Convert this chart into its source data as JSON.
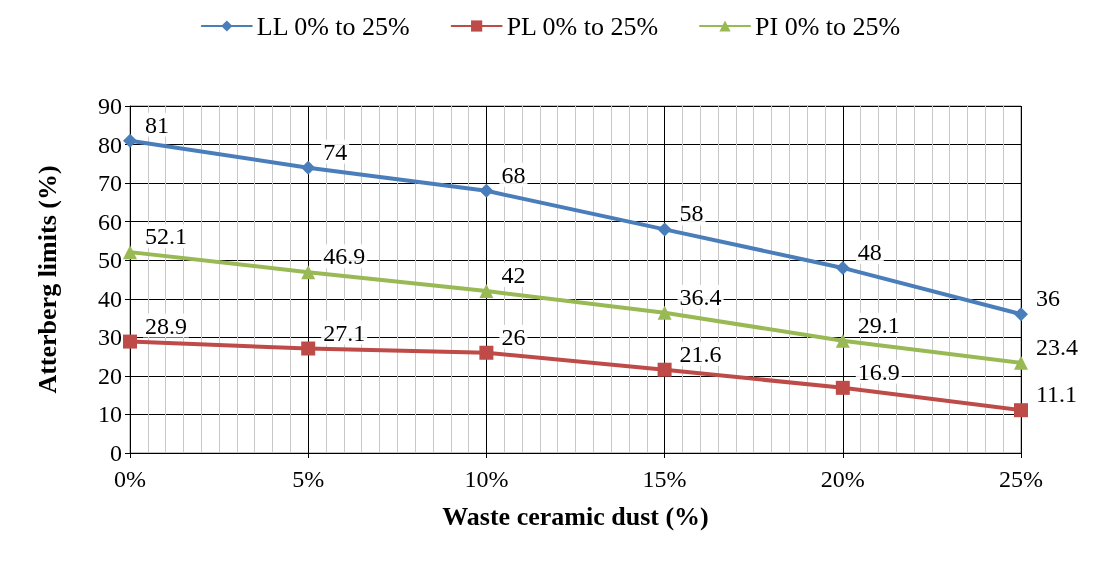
{
  "chart_data": {
    "type": "line",
    "xlabel": "Waste ceramic dust (%)",
    "ylabel": "Atterberg limits (%)",
    "x": [
      0,
      5,
      10,
      15,
      20,
      25
    ],
    "xlim": [
      0,
      25
    ],
    "xticks": [
      {
        "value": 0,
        "label": "0%"
      },
      {
        "value": 5,
        "label": "5%"
      },
      {
        "value": 10,
        "label": "10%"
      },
      {
        "value": 15,
        "label": "15%"
      },
      {
        "value": 20,
        "label": "20%"
      },
      {
        "value": 25,
        "label": "25%"
      }
    ],
    "ylim": [
      0,
      90
    ],
    "yticks": [
      0,
      10,
      20,
      30,
      40,
      50,
      60,
      70,
      80,
      90
    ],
    "series": [
      {
        "name": "LL 0% to 25%",
        "color": "#4a7ebb",
        "marker": "diamond",
        "values": [
          81,
          74,
          68,
          58,
          48,
          36
        ]
      },
      {
        "name": "PL 0% to 25%",
        "color": "#be4b48",
        "marker": "square",
        "values": [
          28.9,
          27.1,
          26,
          21.6,
          16.9,
          11.1
        ]
      },
      {
        "name": "PI 0% to 25%",
        "color": "#98b954",
        "marker": "triangle",
        "values": [
          52.1,
          46.9,
          42,
          36.4,
          29.1,
          23.4
        ]
      }
    ],
    "data_labels": true,
    "grid": true,
    "legend": "top",
    "line_style": "solid"
  }
}
